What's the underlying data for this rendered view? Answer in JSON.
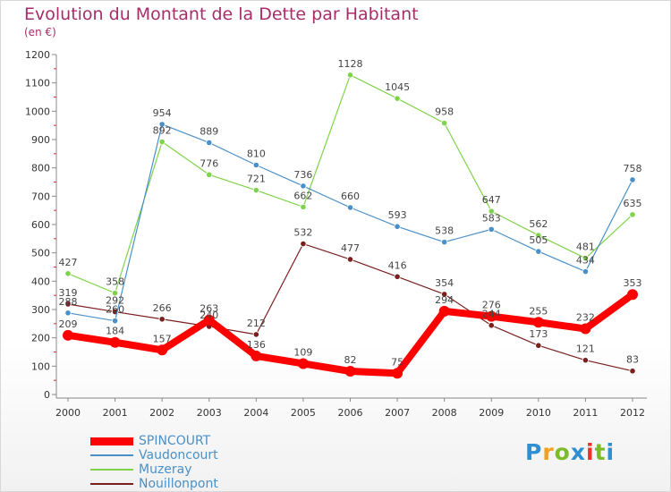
{
  "chart_data": {
    "type": "line",
    "title": "Evolution du Montant de la Dette par Habitant",
    "subtitle": "(en €)",
    "x": [
      "2000",
      "2001",
      "2002",
      "2003",
      "2004",
      "2005",
      "2006",
      "2007",
      "2008",
      "2009",
      "2010",
      "2011",
      "2012"
    ],
    "ylim": [
      0,
      1200
    ],
    "yticks": [
      "0",
      "100",
      "200",
      "300",
      "400",
      "500",
      "600",
      "700",
      "800",
      "900",
      "1000",
      "1100",
      "1200"
    ],
    "grid": false,
    "legend_position": "bottom-left",
    "series": [
      {
        "name": "SPINCOURT",
        "color": "#ff0000",
        "values": [
          209,
          184,
          157,
          263,
          136,
          109,
          82,
          75,
          294,
          276,
          255,
          232,
          353
        ]
      },
      {
        "name": "Vaudoncourt",
        "color": "#4a90c8",
        "values": [
          288,
          260,
          954,
          889,
          810,
          736,
          660,
          593,
          538,
          583,
          505,
          434,
          758
        ]
      },
      {
        "name": "Muzeray",
        "color": "#7fd34a",
        "values": [
          427,
          358,
          892,
          776,
          721,
          662,
          1128,
          1045,
          958,
          647,
          562,
          481,
          635
        ]
      },
      {
        "name": "Nouillonpont",
        "color": "#7a1e1e",
        "values": [
          319,
          292,
          266,
          240,
          212,
          532,
          477,
          416,
          354,
          244,
          173,
          121,
          83
        ]
      }
    ]
  },
  "logo": [
    "P",
    "r",
    "o",
    "x",
    "i",
    "t",
    "i"
  ]
}
